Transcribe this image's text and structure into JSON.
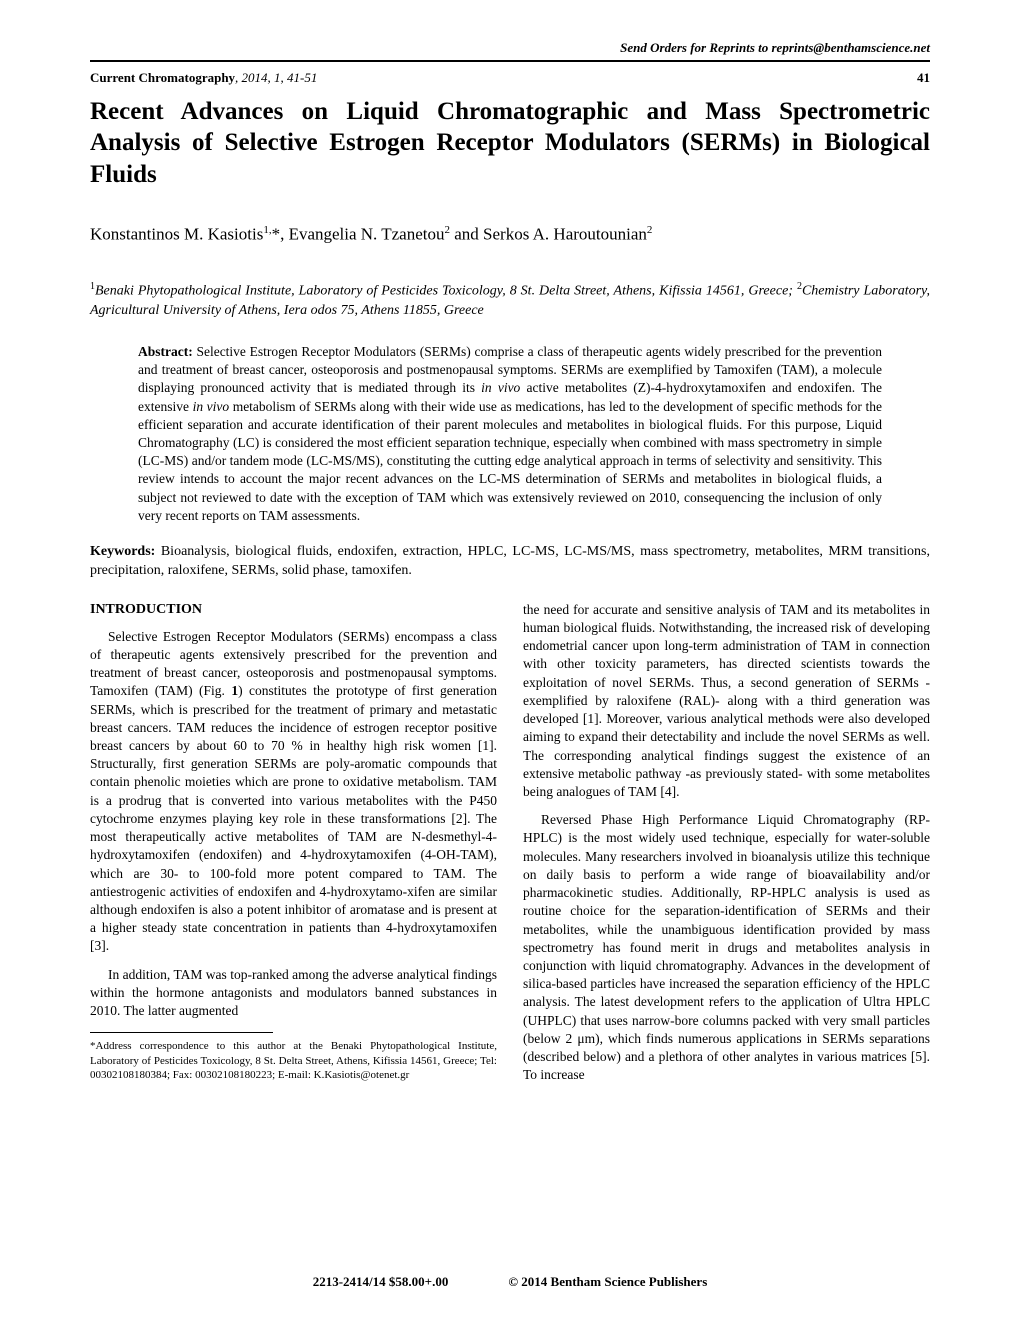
{
  "header": {
    "reprint_notice": "Send Orders for Reprints to reprints@benthamscience.net",
    "journal_name": "Current Chromatography",
    "year": "2014",
    "volume": "1",
    "pages": "41-51",
    "page_number": "41"
  },
  "title": "Recent Advances on Liquid Chromatographic and Mass Spectrometric Analysis of Selective Estrogen Receptor Modulators (SERMs) in Biological Fluids",
  "authors": {
    "a1_name": "Konstantinos M. Kasiotis",
    "a1_sup": "1,",
    "a1_mark": "*",
    "sep1": ", ",
    "a2_name": "Evangelia N. Tzanetou",
    "a2_sup": "2",
    "sep2": " and ",
    "a3_name": "Serkos A. Haroutounian",
    "a3_sup": "2"
  },
  "affiliations": {
    "aff1_sup": "1",
    "aff1": "Benaki Phytopathological Institute, Laboratory of Pesticides Toxicology, 8 St. Delta Street, Athens, Kifissia 14561, Greece; ",
    "aff2_sup": "2",
    "aff2": "Chemistry Laboratory, Agricultural University of Athens, Iera odos 75, Athens 11855, Greece"
  },
  "abstract": {
    "label": "Abstract:",
    "p1": " Selective Estrogen Receptor Modulators (SERMs) comprise a class of therapeutic agents widely prescribed for the prevention and treatment of breast cancer, osteoporosis and postmenopausal symptoms. SERMs are exemplified by Tamoxifen (TAM), a molecule displaying pronounced activity that is mediated through its ",
    "ital1": "in vivo",
    "p2": " active metabolites (Z)-4-hydroxytamoxifen and endoxifen. The extensive ",
    "ital2": "in vivo",
    "p3": " metabolism of SERMs along with their wide use as medications, has led to the development of specific methods for the efficient separation and accurate identification of their parent molecules and metabolites in biological fluids. For this purpose, Liquid Chromatography (LC) is considered the most efficient separation technique, especially when combined with mass spectrometry in simple (LC-MS) and/or tandem mode (LC-MS/MS), constituting the cutting edge analytical approach in terms of selectivity and sensitivity. This review intends to account the major recent advances on the LC-MS determination of SERMs and metabolites in biological fluids, a subject not reviewed to date with the exception of TAM which was extensively reviewed on 2010, consequencing the inclusion of only very recent reports on TAM assessments."
  },
  "keywords": {
    "label": "Keywords:",
    "text": " Bioanalysis, biological fluids, endoxifen, extraction, HPLC, LC-MS, LC-MS/MS, mass spectrometry, metabolites, MRM transitions, precipitation, raloxifene, SERMs, solid phase, tamoxifen."
  },
  "intro": {
    "heading": "INTRODUCTION",
    "para1_a": "Selective Estrogen Receptor Modulators (SERMs) encompass a class of therapeutic agents extensively prescribed for the prevention and treatment of breast cancer, osteoporosis and postmenopausal symptoms. Tamoxifen (TAM) (Fig. ",
    "para1_fig": "1",
    "para1_b": ") constitutes the prototype of first generation SERMs, which is prescribed for the treatment of primary and metastatic breast cancers. TAM reduces the incidence of estrogen receptor positive breast cancers by about 60 to 70 % in healthy high risk women [1]. Structurally, first generation SERMs are poly-aromatic compounds that contain phenolic moieties which are prone to oxidative metabolism. TAM is a prodrug that is converted into various metabolites with the P450 cytochrome enzymes playing key role in these transformations [2]. The most therapeutically active metabolites of TAM are N-desmethyl-4-hydroxytamoxifen (endoxifen) and 4-hydroxytamoxifen (4-OH-TAM), which are 30- to 100-fold more potent compared to TAM. The antiestrogenic activities of endoxifen and 4-hydroxytamo-xifen are similar although endoxifen is also a potent inhibitor of aromatase and is present at a higher steady state concentration in patients than 4-hydroxytamoxifen [3].",
    "para2": "In addition, TAM was top-ranked among the adverse analytical findings within the hormone antagonists and modulators banned substances in 2010. The latter augmented",
    "right_para1": "the need for accurate and sensitive analysis of TAM and its metabolites in human biological fluids. Notwithstanding, the increased risk of developing endometrial cancer upon long-term administration of TAM in connection with other toxicity parameters, has directed scientists towards the exploitation of novel SERMs. Thus, a second generation of SERMs -exemplified by raloxifene (RAL)- along with a third generation was developed [1]. Moreover, various analytical methods were also developed aiming to expand their detectability and include the novel SERMs as well. The corresponding analytical findings suggest the existence of an extensive metabolic pathway -as previously stated- with some metabolites being analogues of TAM [4].",
    "right_para2": "Reversed Phase High Performance Liquid Chromatography (RP-HPLC) is the most widely used technique, especially for water-soluble molecules. Many researchers involved in bioanalysis utilize this technique on daily basis to perform a wide range of bioavailability and/or pharmacokinetic studies. Additionally, RP-HPLC analysis is used as routine choice for the separation-identification of SERMs and their metabolites, while the unambiguous identification provided by mass spectrometry has found merit in drugs and metabolites analysis in conjunction with liquid chromatography. Advances in the development of silica-based particles have increased the separation efficiency of the HPLC analysis. The latest development refers to the application of Ultra HPLC (UHPLC) that uses narrow-bore columns packed with very small particles (below 2 μm), which finds numerous applications in SERMs separations (described below) and a plethora of other analytes in various matrices [5]. To increase"
  },
  "correspondence": "*Address correspondence to this author at the Benaki Phytopathological Institute, Laboratory of Pesticides Toxicology, 8 St. Delta Street, Athens, Kifissia 14561, Greece; Tel: 00302108180384; Fax: 00302108180223; E-mail: K.Kasiotis@otenet.gr",
  "footer": {
    "issn_price": "2213-2414/14 $58.00+.00",
    "copyright": "© 2014 Bentham Science Publishers"
  }
}
